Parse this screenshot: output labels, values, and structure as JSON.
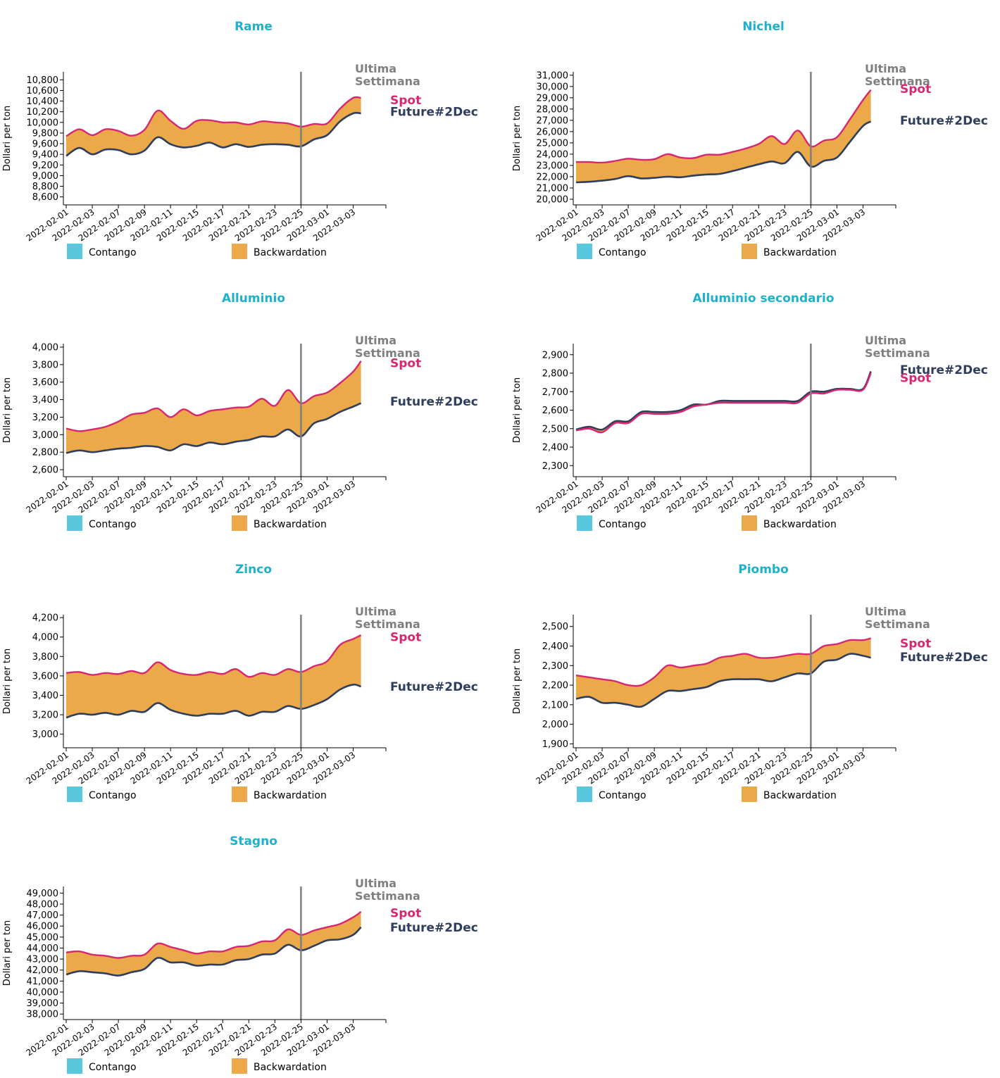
{
  "colors": {
    "title": "#1fb0cb",
    "spot": "#d62773",
    "future": "#2e3e5c",
    "backwardation": "#eba94a",
    "contango": "#5ac8dc",
    "marker": "#7f7f7f",
    "marker_text": "#7f7f7f",
    "axis": "#000000"
  },
  "labels": {
    "y_axis": "Dollari per ton",
    "marker": [
      "Ultima",
      "Settimana"
    ],
    "spot": "Spot",
    "future": "Future#2Dec",
    "legend_contango": "Contango",
    "legend_backwardation": "Backwardation"
  },
  "chart_data": [
    {
      "type": "area",
      "title": "Rame",
      "ylabel": "Dollari per ton",
      "ylim": [
        8450,
        10950
      ],
      "yticks": [
        8600,
        8800,
        9000,
        9200,
        9400,
        9600,
        9800,
        10000,
        10200,
        10400,
        10600,
        10800
      ],
      "xticks": [
        "2022-02-01",
        "2022-02-03",
        "2022-02-07",
        "2022-02-09",
        "2022-02-11",
        "2022-02-15",
        "2022-02-17",
        "2022-02-21",
        "2022-02-23",
        "2022-02-25",
        "2022-03-01",
        "2022-03-03"
      ],
      "marker_x": 9,
      "series": [
        {
          "name": "Spot",
          "x": [
            0,
            0.5,
            1,
            1.5,
            2,
            2.5,
            3,
            3.5,
            4,
            4.5,
            5,
            5.5,
            6,
            6.5,
            7,
            7.5,
            8,
            8.5,
            9,
            9.5,
            10,
            10.5,
            11,
            11.3
          ],
          "values": [
            9740,
            9870,
            9760,
            9870,
            9840,
            9750,
            9860,
            10220,
            10030,
            9880,
            10030,
            10040,
            10000,
            10000,
            9960,
            10020,
            10000,
            9980,
            9920,
            9970,
            9980,
            10260,
            10460,
            10460
          ]
        },
        {
          "name": "Future#2Dec",
          "x": [
            0,
            0.5,
            1,
            1.5,
            2,
            2.5,
            3,
            3.5,
            4,
            4.5,
            5,
            5.5,
            6,
            6.5,
            7,
            7.5,
            8,
            8.5,
            9,
            9.5,
            10,
            10.5,
            11,
            11.3
          ],
          "values": [
            9370,
            9520,
            9400,
            9490,
            9480,
            9400,
            9470,
            9720,
            9590,
            9530,
            9560,
            9620,
            9530,
            9590,
            9540,
            9580,
            9590,
            9580,
            9550,
            9680,
            9760,
            10020,
            10170,
            10170
          ]
        }
      ],
      "label_values": {
        "spot": 10420,
        "future": 10200
      }
    },
    {
      "type": "area",
      "title": "Nichel",
      "ylabel": "Dollari per ton",
      "ylim": [
        19500,
        31300
      ],
      "yticks": [
        20000,
        21000,
        22000,
        23000,
        24000,
        25000,
        26000,
        27000,
        28000,
        29000,
        30000,
        31000
      ],
      "xticks": [
        "2022-02-01",
        "2022-02-03",
        "2022-02-07",
        "2022-02-09",
        "2022-02-11",
        "2022-02-15",
        "2022-02-17",
        "2022-02-21",
        "2022-02-23",
        "2022-02-25",
        "2022-03-01",
        "2022-03-03"
      ],
      "marker_x": 9,
      "series": [
        {
          "name": "Spot",
          "x": [
            0,
            0.5,
            1,
            1.5,
            2,
            2.5,
            3,
            3.5,
            4,
            4.5,
            5,
            5.5,
            6,
            6.5,
            7,
            7.5,
            8,
            8.5,
            9,
            9.5,
            10,
            10.5,
            11,
            11.3
          ],
          "values": [
            23300,
            23300,
            23250,
            23400,
            23600,
            23500,
            23550,
            24000,
            23700,
            23650,
            23950,
            23950,
            24200,
            24500,
            24900,
            25600,
            24900,
            26100,
            24700,
            25200,
            25500,
            27100,
            28800,
            29700
          ]
        },
        {
          "name": "Future#2Dec",
          "x": [
            0,
            0.5,
            1,
            1.5,
            2,
            2.5,
            3,
            3.5,
            4,
            4.5,
            5,
            5.5,
            6,
            6.5,
            7,
            7.5,
            8,
            8.5,
            9,
            9.5,
            10,
            10.5,
            11,
            11.3
          ],
          "values": [
            21500,
            21550,
            21650,
            21800,
            22050,
            21850,
            21900,
            22000,
            21950,
            22100,
            22200,
            22250,
            22500,
            22800,
            23100,
            23350,
            23200,
            24200,
            22900,
            23400,
            23700,
            25100,
            26500,
            26900
          ]
        }
      ],
      "label_values": {
        "spot": 29800,
        "future": 27000
      }
    },
    {
      "type": "area",
      "title": "Alluminio",
      "ylabel": "Dollari per ton",
      "ylim": [
        2520,
        4040
      ],
      "yticks": [
        2600,
        2800,
        3000,
        3200,
        3400,
        3600,
        3800,
        4000
      ],
      "xticks": [
        "2022-02-01",
        "2022-02-03",
        "2022-02-07",
        "2022-02-09",
        "2022-02-11",
        "2022-02-15",
        "2022-02-17",
        "2022-02-21",
        "2022-02-23",
        "2022-02-25",
        "2022-03-01",
        "2022-03-03"
      ],
      "marker_x": 9,
      "series": [
        {
          "name": "Spot",
          "x": [
            0,
            0.5,
            1,
            1.5,
            2,
            2.5,
            3,
            3.5,
            4,
            4.5,
            5,
            5.5,
            6,
            6.5,
            7,
            7.5,
            8,
            8.5,
            9,
            9.5,
            10,
            10.5,
            11,
            11.3
          ],
          "values": [
            3070,
            3040,
            3060,
            3090,
            3150,
            3230,
            3250,
            3300,
            3200,
            3290,
            3220,
            3270,
            3290,
            3310,
            3320,
            3410,
            3330,
            3510,
            3360,
            3440,
            3480,
            3590,
            3720,
            3840
          ]
        },
        {
          "name": "Future#2Dec",
          "x": [
            0,
            0.5,
            1,
            1.5,
            2,
            2.5,
            3,
            3.5,
            4,
            4.5,
            5,
            5.5,
            6,
            6.5,
            7,
            7.5,
            8,
            8.5,
            9,
            9.5,
            10,
            10.5,
            11,
            11.3
          ],
          "values": [
            2790,
            2820,
            2800,
            2820,
            2840,
            2850,
            2870,
            2860,
            2820,
            2890,
            2870,
            2910,
            2890,
            2920,
            2940,
            2980,
            2980,
            3060,
            2980,
            3130,
            3180,
            3260,
            3320,
            3360
          ]
        }
      ],
      "label_values": {
        "spot": 3820,
        "future": 3380
      }
    },
    {
      "type": "area",
      "title": "Alluminio secondario",
      "ylabel": "Dollari per ton",
      "ylim": [
        2240,
        2960
      ],
      "yticks": [
        2300,
        2400,
        2500,
        2600,
        2700,
        2800,
        2900
      ],
      "xticks": [
        "2022-02-01",
        "2022-02-03",
        "2022-02-07",
        "2022-02-09",
        "2022-02-11",
        "2022-02-15",
        "2022-02-17",
        "2022-02-21",
        "2022-02-23",
        "2022-02-25",
        "2022-03-01",
        "2022-03-03"
      ],
      "marker_x": 9,
      "series": [
        {
          "name": "Spot",
          "x": [
            0,
            0.5,
            1,
            1.5,
            2,
            2.5,
            3,
            3.5,
            4,
            4.5,
            5,
            5.5,
            6,
            6.5,
            7,
            7.5,
            8,
            8.5,
            9,
            9.5,
            10,
            10.5,
            11,
            11.3
          ],
          "values": [
            2490,
            2500,
            2480,
            2530,
            2530,
            2580,
            2580,
            2580,
            2590,
            2620,
            2630,
            2640,
            2640,
            2640,
            2640,
            2640,
            2640,
            2640,
            2690,
            2690,
            2710,
            2710,
            2710,
            2800
          ]
        },
        {
          "name": "Future#2Dec",
          "x": [
            0,
            0.5,
            1,
            1.5,
            2,
            2.5,
            3,
            3.5,
            4,
            4.5,
            5,
            5.5,
            6,
            6.5,
            7,
            7.5,
            8,
            8.5,
            9,
            9.5,
            10,
            10.5,
            11,
            11.3
          ],
          "values": [
            2495,
            2510,
            2495,
            2540,
            2540,
            2590,
            2590,
            2590,
            2600,
            2630,
            2630,
            2650,
            2650,
            2650,
            2650,
            2650,
            2650,
            2650,
            2700,
            2700,
            2715,
            2715,
            2715,
            2810
          ]
        }
      ],
      "label_values": {
        "spot": 2775,
        "future": 2820
      }
    },
    {
      "type": "area",
      "title": "Zinco",
      "ylabel": "Dollari per ton",
      "ylim": [
        2860,
        4230
      ],
      "yticks": [
        3000,
        3200,
        3400,
        3600,
        3800,
        4000,
        4200
      ],
      "xticks": [
        "2022-02-01",
        "2022-02-03",
        "2022-02-07",
        "2022-02-09",
        "2022-02-11",
        "2022-02-15",
        "2022-02-17",
        "2022-02-21",
        "2022-02-23",
        "2022-02-25",
        "2022-03-01",
        "2022-03-03"
      ],
      "marker_x": 9,
      "series": [
        {
          "name": "Spot",
          "x": [
            0,
            0.5,
            1,
            1.5,
            2,
            2.5,
            3,
            3.5,
            4,
            4.5,
            5,
            5.5,
            6,
            6.5,
            7,
            7.5,
            8,
            8.5,
            9,
            9.5,
            10,
            10.5,
            11,
            11.3
          ],
          "values": [
            3630,
            3640,
            3610,
            3630,
            3620,
            3650,
            3630,
            3740,
            3660,
            3620,
            3610,
            3640,
            3620,
            3670,
            3590,
            3630,
            3610,
            3670,
            3640,
            3700,
            3750,
            3920,
            3980,
            4020
          ]
        },
        {
          "name": "Future#2Dec",
          "x": [
            0,
            0.5,
            1,
            1.5,
            2,
            2.5,
            3,
            3.5,
            4,
            4.5,
            5,
            5.5,
            6,
            6.5,
            7,
            7.5,
            8,
            8.5,
            9,
            9.5,
            10,
            10.5,
            11,
            11.3
          ],
          "values": [
            3170,
            3210,
            3200,
            3220,
            3200,
            3240,
            3230,
            3320,
            3250,
            3210,
            3190,
            3210,
            3210,
            3240,
            3190,
            3230,
            3230,
            3290,
            3260,
            3300,
            3360,
            3460,
            3510,
            3490
          ]
        }
      ],
      "label_values": {
        "spot": 4000,
        "future": 3490
      }
    },
    {
      "type": "area",
      "title": "Piombo",
      "ylabel": "Dollari per ton",
      "ylim": [
        1880,
        2560
      ],
      "yticks": [
        1900,
        2000,
        2100,
        2200,
        2300,
        2400,
        2500
      ],
      "xticks": [
        "2022-02-01",
        "2022-02-03",
        "2022-02-07",
        "2022-02-09",
        "2022-02-11",
        "2022-02-15",
        "2022-02-17",
        "2022-02-21",
        "2022-02-23",
        "2022-02-25",
        "2022-03-01",
        "2022-03-03"
      ],
      "marker_x": 9,
      "series": [
        {
          "name": "Spot",
          "x": [
            0,
            0.5,
            1,
            1.5,
            2,
            2.5,
            3,
            3.5,
            4,
            4.5,
            5,
            5.5,
            6,
            6.5,
            7,
            7.5,
            8,
            8.5,
            9,
            9.5,
            10,
            10.5,
            11,
            11.3
          ],
          "values": [
            2250,
            2240,
            2230,
            2220,
            2200,
            2200,
            2240,
            2300,
            2290,
            2300,
            2310,
            2340,
            2350,
            2360,
            2340,
            2340,
            2350,
            2360,
            2360,
            2400,
            2410,
            2430,
            2430,
            2440
          ]
        },
        {
          "name": "Future#2Dec",
          "x": [
            0,
            0.5,
            1,
            1.5,
            2,
            2.5,
            3,
            3.5,
            4,
            4.5,
            5,
            5.5,
            6,
            6.5,
            7,
            7.5,
            8,
            8.5,
            9,
            9.5,
            10,
            10.5,
            11,
            11.3
          ],
          "values": [
            2130,
            2140,
            2110,
            2110,
            2100,
            2090,
            2130,
            2170,
            2170,
            2180,
            2190,
            2220,
            2230,
            2230,
            2230,
            2220,
            2240,
            2260,
            2260,
            2320,
            2330,
            2360,
            2350,
            2340
          ]
        }
      ],
      "label_values": {
        "spot": 2415,
        "future": 2345
      }
    },
    {
      "type": "area",
      "title": "Stagno",
      "ylabel": "Dollari per ton",
      "ylim": [
        37500,
        49600
      ],
      "yticks": [
        38000,
        39000,
        40000,
        41000,
        42000,
        43000,
        44000,
        45000,
        46000,
        47000,
        48000,
        49000
      ],
      "xticks": [
        "2022-02-01",
        "2022-02-03",
        "2022-02-07",
        "2022-02-09",
        "2022-02-11",
        "2022-02-15",
        "2022-02-17",
        "2022-02-21",
        "2022-02-23",
        "2022-02-25",
        "2022-03-01",
        "2022-03-03"
      ],
      "marker_x": 9,
      "series": [
        {
          "name": "Spot",
          "x": [
            0,
            0.5,
            1,
            1.5,
            2,
            2.5,
            3,
            3.5,
            4,
            4.5,
            5,
            5.5,
            6,
            6.5,
            7,
            7.5,
            8,
            8.5,
            9,
            9.5,
            10,
            10.5,
            11,
            11.3
          ],
          "values": [
            43600,
            43700,
            43400,
            43300,
            43100,
            43300,
            43400,
            44400,
            44100,
            43800,
            43500,
            43700,
            43700,
            44100,
            44200,
            44600,
            44700,
            45700,
            45200,
            45600,
            45900,
            46200,
            46800,
            47300
          ]
        },
        {
          "name": "Future#2Dec",
          "x": [
            0,
            0.5,
            1,
            1.5,
            2,
            2.5,
            3,
            3.5,
            4,
            4.5,
            5,
            5.5,
            6,
            6.5,
            7,
            7.5,
            8,
            8.5,
            9,
            9.5,
            10,
            10.5,
            11,
            11.3
          ],
          "values": [
            41600,
            41900,
            41800,
            41700,
            41500,
            41800,
            42100,
            43100,
            42700,
            42700,
            42400,
            42500,
            42500,
            42900,
            43000,
            43400,
            43500,
            44300,
            43800,
            44200,
            44700,
            44800,
            45200,
            45900
          ]
        }
      ],
      "label_values": {
        "spot": 47200,
        "future": 45900
      }
    }
  ]
}
